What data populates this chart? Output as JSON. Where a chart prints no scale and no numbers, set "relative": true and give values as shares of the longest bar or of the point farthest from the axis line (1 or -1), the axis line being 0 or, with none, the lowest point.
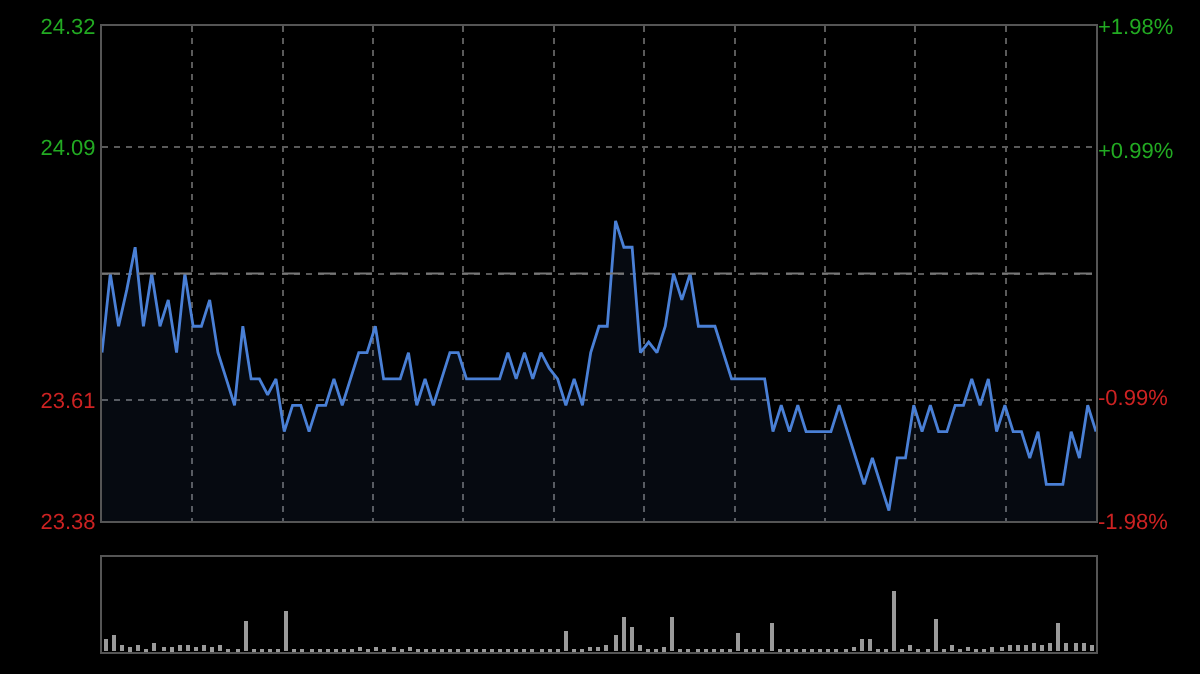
{
  "chart_data": [
    {
      "type": "area",
      "categories": [
        null,
        null,
        null,
        null,
        null,
        null,
        null,
        null,
        null,
        null,
        null,
        null,
        null,
        null,
        null,
        null,
        null,
        null,
        null,
        null,
        null,
        null,
        null,
        null,
        null,
        null,
        null,
        null,
        null,
        null,
        null,
        null,
        null,
        null,
        null,
        null,
        null,
        null,
        null,
        null,
        null,
        null,
        null,
        null,
        null,
        null,
        null,
        null,
        null,
        null,
        null,
        null,
        null,
        null,
        null,
        null,
        null,
        null,
        null,
        null,
        null,
        null,
        null,
        null,
        null,
        null,
        null,
        null,
        null,
        null,
        null,
        null,
        null,
        null,
        null,
        null,
        null,
        null,
        null,
        null,
        null,
        null,
        null,
        null,
        null,
        null,
        null,
        null,
        null,
        null,
        null,
        null,
        null,
        null,
        null,
        null,
        null,
        null,
        null,
        null,
        null,
        null,
        null,
        null,
        null,
        null,
        null,
        null,
        null,
        null,
        null,
        null,
        null,
        null,
        null,
        null,
        null,
        null,
        null,
        null,
        null
      ],
      "series": [
        {
          "color": "#4a80d6",
          "values": [
            23.7,
            23.85,
            23.75,
            23.82,
            23.9,
            23.75,
            23.85,
            23.75,
            23.8,
            23.7,
            23.85,
            23.75,
            23.75,
            23.8,
            23.7,
            23.65,
            23.6,
            23.75,
            23.65,
            23.65,
            23.62,
            23.65,
            23.55,
            23.6,
            23.6,
            23.55,
            23.6,
            23.6,
            23.65,
            23.6,
            23.65,
            23.7,
            23.7,
            23.75,
            23.65,
            23.65,
            23.65,
            23.7,
            23.6,
            23.65,
            23.6,
            23.65,
            23.7,
            23.7,
            23.65,
            23.65,
            23.65,
            23.65,
            23.65,
            23.7,
            23.65,
            23.7,
            23.65,
            23.7,
            23.67,
            23.65,
            23.6,
            23.65,
            23.6,
            23.7,
            23.75,
            23.75,
            23.95,
            23.9,
            23.9,
            23.7,
            23.72,
            23.7,
            23.75,
            23.85,
            23.8,
            23.85,
            23.75,
            23.75,
            23.75,
            23.7,
            23.65,
            23.65,
            23.65,
            23.65,
            23.65,
            23.55,
            23.6,
            23.55,
            23.6,
            23.55,
            23.55,
            23.55,
            23.55,
            23.6,
            23.55,
            23.5,
            23.45,
            23.5,
            23.45,
            23.4,
            23.5,
            23.5,
            23.6,
            23.55,
            23.6,
            23.55,
            23.55,
            23.6,
            23.6,
            23.65,
            23.6,
            23.65,
            23.55,
            23.6,
            23.55,
            23.55,
            23.5,
            23.55,
            23.45,
            23.45,
            23.45,
            23.55,
            23.5,
            23.6,
            23.55
          ]
        }
      ],
      "ylim": [
        23.38,
        24.32
      ],
      "yticks": [
        24.32,
        24.09,
        {
          "value": 23.85,
          "label": null
        },
        23.61,
        23.38
      ],
      "y2lim": [
        -1.98,
        1.98
      ],
      "y2ticks": [
        {
          "value": 1.98,
          "label": "+1.98%"
        },
        {
          "value": 0.99,
          "label": "+0.99%"
        },
        {
          "value": 0,
          "label": null
        },
        {
          "value": -0.99,
          "label": "-0.99%"
        },
        {
          "value": -1.98,
          "label": "-1.98%"
        }
      ],
      "ref_lines": [
        {
          "axis": "y",
          "value": 23.85,
          "color": "#777777",
          "line_style": "dashed"
        }
      ],
      "grid": true,
      "marker": "none",
      "line_style": "solid",
      "tick_labels": "y"
    },
    {
      "type": "bar",
      "relative": true,
      "color": "#9a9a9a",
      "categories": [
        null,
        null,
        null,
        null,
        null,
        null,
        null,
        null,
        null,
        null,
        null,
        null,
        null,
        null,
        null,
        null,
        null,
        null,
        null,
        null,
        null,
        null,
        null,
        null,
        null,
        null,
        null,
        null,
        null,
        null,
        null,
        null,
        null,
        null,
        null,
        null,
        null,
        null,
        null,
        null,
        null,
        null,
        null,
        null,
        null,
        null,
        null,
        null,
        null,
        null,
        null,
        null,
        null,
        null,
        null,
        null,
        null,
        null,
        null,
        null,
        null,
        null,
        null,
        null,
        null,
        null,
        null,
        null,
        null,
        null,
        null,
        null,
        null,
        null,
        null,
        null,
        null,
        null,
        null,
        null,
        null,
        null,
        null,
        null,
        null,
        null,
        null,
        null,
        null,
        null,
        null,
        null,
        null,
        null,
        null,
        null,
        null,
        null,
        null,
        null,
        null,
        null,
        null,
        null,
        null,
        null,
        null,
        null,
        null,
        null,
        null,
        null,
        null,
        null,
        null,
        null,
        null,
        null,
        null,
        null,
        null
      ],
      "values": [
        0.2,
        0.27,
        0.1,
        0.06,
        0.12,
        0.05,
        0.13,
        0.08,
        0.06,
        0.12,
        0.1,
        0.07,
        0.12,
        0.06,
        0.1,
        0.05,
        0.04,
        0.5,
        0.05,
        0.04,
        0.05,
        0.04,
        0.66,
        0.05,
        0.04,
        0.03,
        0.05,
        0.04,
        0.03,
        0.04,
        0.03,
        0.09,
        0.04,
        0.08,
        0.05,
        0.08,
        0.04,
        0.09,
        0.03,
        0.03,
        0.05,
        0.03,
        0.02,
        0.03,
        0.02,
        0.03,
        0.02,
        0.03,
        0.02,
        0.03,
        0.02,
        0.03,
        0.03,
        0.02,
        0.04,
        0.03,
        0.33,
        0.03,
        0.05,
        0.09,
        0.08,
        0.1,
        0.26,
        0.58,
        0.39,
        0.1,
        0.05,
        0.04,
        0.06,
        0.58,
        0.05,
        0.03,
        0.04,
        0.05,
        0.03,
        0.04,
        0.03,
        0.31,
        0.05,
        0.03,
        0.04,
        0.46,
        0.05,
        0.04,
        0.03,
        0.04,
        0.03,
        0.04,
        0.03,
        0.04,
        0.05,
        0.08,
        0.21,
        0.21,
        0.04,
        0.05,
        1,
        0.05,
        0.12,
        0.04,
        0.05,
        0.52,
        0.05,
        0.1,
        0.05,
        0.08,
        0.04,
        0.05,
        0.06,
        0.08,
        0.1,
        0.12,
        0.1,
        0.14,
        0.12,
        0.15,
        0.46,
        0.15,
        0.15,
        0.15,
        0.12
      ],
      "grid": false,
      "tick_labels": false
    }
  ]
}
